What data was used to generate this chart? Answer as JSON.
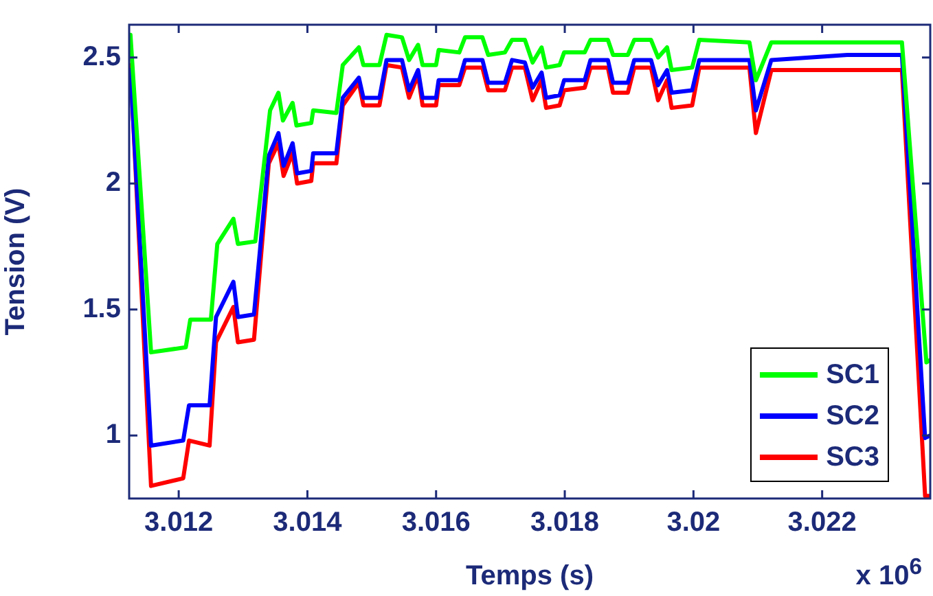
{
  "chart_data": {
    "type": "line",
    "xlabel": "Temps (s)",
    "ylabel": "Tension (V)",
    "annotations": [
      "x 10$^{6}$"
    ],
    "xlim": [
      3.01123,
      3.02368
    ],
    "ylim": [
      0.75,
      2.63
    ],
    "xticks": [
      3.012,
      3.014,
      3.016,
      3.018,
      3.02,
      3.022
    ],
    "yticks": [
      1,
      1.5,
      2,
      2.5
    ],
    "grid": false,
    "legend": "bottom right",
    "marker": "none",
    "line_style": "solid",
    "series": [
      {
        "name": "SC1",
        "color": "#00ff00",
        "x": [
          3.01125,
          3.01157,
          3.01211,
          3.01218,
          3.0125,
          3.0126,
          3.01285,
          3.01292,
          3.01319,
          3.01342,
          3.01355,
          3.01362,
          3.01377,
          3.01383,
          3.01406,
          3.01409,
          3.01445,
          3.01455,
          3.0148,
          3.01487,
          3.01512,
          3.01523,
          3.01547,
          3.01558,
          3.01572,
          3.01579,
          3.016,
          3.01604,
          3.01636,
          3.01645,
          3.01672,
          3.01681,
          3.01707,
          3.01718,
          3.01738,
          3.0175,
          3.01764,
          3.01771,
          3.01792,
          3.01799,
          3.01831,
          3.0184,
          3.01867,
          3.01875,
          3.01898,
          3.01908,
          3.01934,
          3.01945,
          3.01959,
          3.01966,
          3.01998,
          3.02009,
          3.02087,
          3.02097,
          3.02121,
          3.02324,
          3.02362,
          3.02368
        ],
        "values": [
          2.59,
          1.33,
          1.35,
          1.46,
          1.46,
          1.76,
          1.86,
          1.76,
          1.77,
          2.29,
          2.36,
          2.25,
          2.32,
          2.23,
          2.24,
          2.29,
          2.28,
          2.47,
          2.54,
          2.47,
          2.47,
          2.59,
          2.58,
          2.49,
          2.55,
          2.47,
          2.47,
          2.53,
          2.52,
          2.58,
          2.58,
          2.51,
          2.52,
          2.57,
          2.57,
          2.48,
          2.54,
          2.46,
          2.47,
          2.52,
          2.52,
          2.57,
          2.57,
          2.51,
          2.51,
          2.57,
          2.57,
          2.5,
          2.54,
          2.45,
          2.46,
          2.57,
          2.56,
          2.41,
          2.56,
          2.56,
          1.29,
          1.3
        ]
      },
      {
        "name": "SC2",
        "color": "#0000ff",
        "x": [
          3.01125,
          3.01157,
          3.01207,
          3.01216,
          3.01248,
          3.01258,
          3.01285,
          3.01292,
          3.01317,
          3.0134,
          3.01355,
          3.01363,
          3.01377,
          3.01384,
          3.01406,
          3.01409,
          3.01445,
          3.01455,
          3.0148,
          3.01487,
          3.01512,
          3.01523,
          3.01547,
          3.01558,
          3.01572,
          3.01579,
          3.016,
          3.01604,
          3.01636,
          3.01645,
          3.01672,
          3.01681,
          3.01707,
          3.01718,
          3.01738,
          3.0175,
          3.01764,
          3.01771,
          3.01792,
          3.01799,
          3.01831,
          3.0184,
          3.01867,
          3.01875,
          3.01898,
          3.01908,
          3.01934,
          3.01945,
          3.01959,
          3.01966,
          3.01998,
          3.02009,
          3.02087,
          3.02097,
          3.02121,
          3.02239,
          3.02324,
          3.0236,
          3.02368
        ],
        "values": [
          2.45,
          0.96,
          0.98,
          1.12,
          1.12,
          1.47,
          1.61,
          1.47,
          1.48,
          2.11,
          2.2,
          2.07,
          2.16,
          2.04,
          2.05,
          2.12,
          2.12,
          2.34,
          2.42,
          2.34,
          2.34,
          2.49,
          2.49,
          2.37,
          2.45,
          2.34,
          2.34,
          2.41,
          2.41,
          2.49,
          2.49,
          2.4,
          2.4,
          2.49,
          2.48,
          2.38,
          2.44,
          2.34,
          2.35,
          2.41,
          2.41,
          2.49,
          2.49,
          2.4,
          2.4,
          2.49,
          2.49,
          2.39,
          2.45,
          2.36,
          2.37,
          2.49,
          2.49,
          2.29,
          2.49,
          2.51,
          2.51,
          0.99,
          1.0
        ]
      },
      {
        "name": "SC3",
        "color": "#ff0000",
        "x": [
          3.01125,
          3.01157,
          3.01207,
          3.01216,
          3.01248,
          3.01258,
          3.01285,
          3.01292,
          3.01317,
          3.0134,
          3.01355,
          3.01363,
          3.01377,
          3.01384,
          3.01406,
          3.01409,
          3.01445,
          3.01455,
          3.0148,
          3.01487,
          3.01512,
          3.01523,
          3.01547,
          3.01558,
          3.01572,
          3.01579,
          3.016,
          3.01604,
          3.01636,
          3.01645,
          3.01672,
          3.01681,
          3.01707,
          3.01718,
          3.01738,
          3.0175,
          3.01764,
          3.01771,
          3.01792,
          3.01799,
          3.01831,
          3.0184,
          3.01867,
          3.01875,
          3.01898,
          3.01908,
          3.01934,
          3.01945,
          3.01959,
          3.01966,
          3.01998,
          3.02009,
          3.02087,
          3.02097,
          3.02121,
          3.02324,
          3.0236,
          3.02368
        ],
        "values": [
          2.47,
          0.8,
          0.83,
          0.98,
          0.96,
          1.37,
          1.51,
          1.37,
          1.38,
          2.08,
          2.16,
          2.03,
          2.12,
          2.0,
          2.01,
          2.08,
          2.08,
          2.31,
          2.4,
          2.31,
          2.31,
          2.47,
          2.46,
          2.34,
          2.43,
          2.31,
          2.31,
          2.39,
          2.39,
          2.46,
          2.46,
          2.37,
          2.37,
          2.46,
          2.46,
          2.33,
          2.41,
          2.3,
          2.31,
          2.37,
          2.38,
          2.46,
          2.46,
          2.36,
          2.36,
          2.46,
          2.46,
          2.33,
          2.41,
          2.3,
          2.31,
          2.46,
          2.46,
          2.2,
          2.45,
          2.45,
          0.76,
          0.76
        ]
      }
    ]
  }
}
